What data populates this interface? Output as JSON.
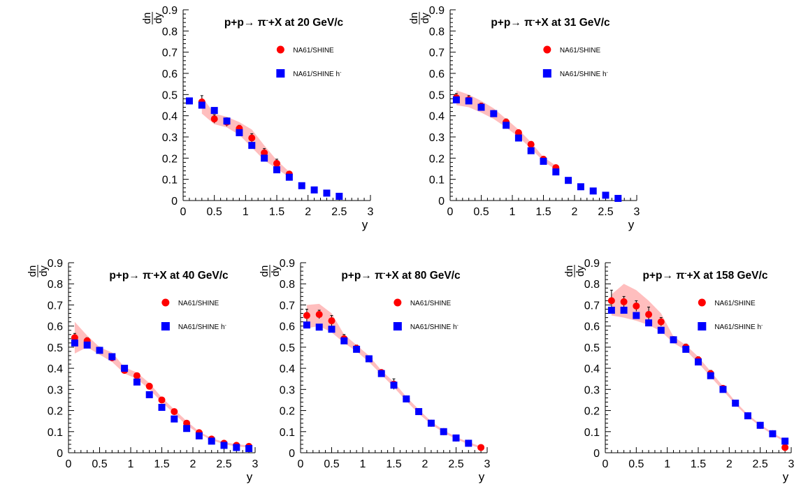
{
  "chart_data": [
    {
      "type": "scatter",
      "title": "p+p→ π⁻+X at 20 GeV/c",
      "ylabel_num": "dn",
      "ylabel_den": "dy",
      "xlabel": "y",
      "xlim": [
        0,
        3
      ],
      "ylim": [
        0,
        0.9
      ],
      "xticks": [
        "0",
        "0.5",
        "1",
        "1.5",
        "2",
        "2.5",
        "3"
      ],
      "yticks": [
        "0",
        "0.1",
        "0.2",
        "0.3",
        "0.4",
        "0.5",
        "0.6",
        "0.7",
        "0.8",
        "0.9"
      ],
      "legend": [
        "NA61/SHINE",
        "NA61/SHINE h⁻"
      ],
      "series": [
        {
          "name": "NA61/SHINE",
          "marker": "circle",
          "color": "#ff0000",
          "points": [
            [
              0.3,
              0.465
            ],
            [
              0.5,
              0.385
            ],
            [
              0.7,
              0.37
            ],
            [
              0.9,
              0.34
            ],
            [
              1.1,
              0.295
            ],
            [
              1.3,
              0.225
            ],
            [
              1.5,
              0.175
            ],
            [
              1.7,
              0.125
            ]
          ],
          "errors": [
            0.03,
            0.02,
            0.02,
            0.015,
            0.02,
            0.02,
            0.02,
            0.01
          ]
        },
        {
          "name": "NA61/SHINE h⁻",
          "marker": "square",
          "color": "#0000ff",
          "points": [
            [
              0.1,
              0.47
            ],
            [
              0.3,
              0.45
            ],
            [
              0.5,
              0.425
            ],
            [
              0.7,
              0.375
            ],
            [
              0.9,
              0.32
            ],
            [
              1.1,
              0.26
            ],
            [
              1.3,
              0.2
            ],
            [
              1.5,
              0.145
            ],
            [
              1.7,
              0.11
            ],
            [
              1.9,
              0.07
            ],
            [
              2.1,
              0.05
            ],
            [
              2.3,
              0.035
            ],
            [
              2.5,
              0.02
            ]
          ]
        }
      ],
      "band": {
        "x": [
          0.3,
          0.5,
          0.7,
          0.9,
          1.1,
          1.3,
          1.5,
          1.7
        ],
        "low": [
          0.41,
          0.36,
          0.345,
          0.31,
          0.25,
          0.19,
          0.15,
          0.11
        ],
        "high": [
          0.49,
          0.41,
          0.395,
          0.37,
          0.335,
          0.26,
          0.19,
          0.135
        ],
        "color": "#ff6f6f"
      }
    },
    {
      "type": "scatter",
      "title": "p+p→ π⁻+X at 31 GeV/c",
      "ylabel_num": "dn",
      "ylabel_den": "dy",
      "xlabel": "y",
      "xlim": [
        0,
        3
      ],
      "ylim": [
        0,
        0.9
      ],
      "xticks": [
        "0",
        "0.5",
        "1",
        "1.5",
        "2",
        "2.5",
        "3"
      ],
      "yticks": [
        "0",
        "0.1",
        "0.2",
        "0.3",
        "0.4",
        "0.5",
        "0.6",
        "0.7",
        "0.8",
        "0.9"
      ],
      "legend": [
        "NA61/SHINE",
        "NA61/SHINE h⁻"
      ],
      "series": [
        {
          "name": "NA61/SHINE",
          "marker": "circle",
          "color": "#ff0000",
          "points": [
            [
              0.1,
              0.485
            ],
            [
              0.3,
              0.475
            ],
            [
              0.5,
              0.445
            ],
            [
              0.7,
              0.41
            ],
            [
              0.9,
              0.37
            ],
            [
              1.1,
              0.32
            ],
            [
              1.3,
              0.265
            ],
            [
              1.5,
              0.195
            ],
            [
              1.7,
              0.155
            ]
          ],
          "errors": [
            0.02,
            0.02,
            0.015,
            0.015,
            0.015,
            0.01,
            0.01,
            0.01,
            0.01
          ]
        },
        {
          "name": "NA61/SHINE h⁻",
          "marker": "square",
          "color": "#0000ff",
          "points": [
            [
              0.1,
              0.475
            ],
            [
              0.3,
              0.47
            ],
            [
              0.5,
              0.44
            ],
            [
              0.7,
              0.41
            ],
            [
              0.9,
              0.355
            ],
            [
              1.1,
              0.295
            ],
            [
              1.3,
              0.235
            ],
            [
              1.5,
              0.185
            ],
            [
              1.7,
              0.135
            ],
            [
              1.9,
              0.095
            ],
            [
              2.1,
              0.065
            ],
            [
              2.3,
              0.045
            ],
            [
              2.5,
              0.025
            ],
            [
              2.7,
              0.01
            ]
          ]
        }
      ],
      "band": {
        "x": [
          0.1,
          0.3,
          0.5,
          0.7,
          0.9,
          1.1,
          1.3,
          1.5,
          1.7
        ],
        "low": [
          0.45,
          0.44,
          0.415,
          0.385,
          0.345,
          0.3,
          0.245,
          0.185,
          0.145
        ],
        "high": [
          0.52,
          0.5,
          0.47,
          0.435,
          0.385,
          0.335,
          0.275,
          0.205,
          0.165
        ],
        "color": "#ff6f6f"
      }
    },
    {
      "type": "scatter",
      "title": "p+p→ π⁻+X at 40 GeV/c",
      "ylabel_num": "dn",
      "ylabel_den": "dy",
      "xlabel": "y",
      "xlim": [
        0,
        3
      ],
      "ylim": [
        0,
        0.9
      ],
      "xticks": [
        "0",
        "0.5",
        "1",
        "1.5",
        "2",
        "2.5",
        "3"
      ],
      "yticks": [
        "0",
        "0.1",
        "0.2",
        "0.3",
        "0.4",
        "0.5",
        "0.6",
        "0.7",
        "0.8",
        "0.9"
      ],
      "legend": [
        "NA61/SHINE",
        "NA61/SHINE h⁻"
      ],
      "series": [
        {
          "name": "NA61/SHINE",
          "marker": "circle",
          "color": "#ff0000",
          "points": [
            [
              0.1,
              0.545
            ],
            [
              0.3,
              0.53
            ],
            [
              0.5,
              0.485
            ],
            [
              0.7,
              0.45
            ],
            [
              0.9,
              0.39
            ],
            [
              1.1,
              0.365
            ],
            [
              1.3,
              0.315
            ],
            [
              1.5,
              0.25
            ],
            [
              1.7,
              0.195
            ],
            [
              1.9,
              0.14
            ],
            [
              2.1,
              0.095
            ],
            [
              2.3,
              0.065
            ],
            [
              2.5,
              0.045
            ],
            [
              2.7,
              0.035
            ],
            [
              2.9,
              0.03
            ]
          ],
          "errors": [
            0.02,
            0.015,
            0.015,
            0.015,
            0.01,
            0.01,
            0.01,
            0.01,
            0.01,
            0.01,
            0.005,
            0.005,
            0.005,
            0.005,
            0.005
          ]
        },
        {
          "name": "NA61/SHINE h⁻",
          "marker": "square",
          "color": "#0000ff",
          "points": [
            [
              0.1,
              0.52
            ],
            [
              0.3,
              0.51
            ],
            [
              0.5,
              0.485
            ],
            [
              0.7,
              0.455
            ],
            [
              0.9,
              0.4
            ],
            [
              1.1,
              0.335
            ],
            [
              1.3,
              0.275
            ],
            [
              1.5,
              0.215
            ],
            [
              1.7,
              0.16
            ],
            [
              1.9,
              0.115
            ],
            [
              2.1,
              0.08
            ],
            [
              2.3,
              0.055
            ],
            [
              2.5,
              0.035
            ],
            [
              2.7,
              0.025
            ],
            [
              2.9,
              0.02
            ]
          ]
        }
      ],
      "band": {
        "x": [
          0.1,
          0.3,
          0.5,
          0.7,
          0.9,
          1.1,
          1.3,
          1.5,
          1.7,
          1.9,
          2.1,
          2.3,
          2.5,
          2.7,
          2.9
        ],
        "low": [
          0.47,
          0.5,
          0.465,
          0.43,
          0.375,
          0.35,
          0.3,
          0.24,
          0.185,
          0.13,
          0.09,
          0.06,
          0.04,
          0.03,
          0.025
        ],
        "high": [
          0.62,
          0.555,
          0.5,
          0.475,
          0.405,
          0.38,
          0.33,
          0.262,
          0.205,
          0.15,
          0.1,
          0.07,
          0.05,
          0.04,
          0.035
        ],
        "color": "#ff6f6f"
      }
    },
    {
      "type": "scatter",
      "title": "p+p→ π⁻+X at 80 GeV/c",
      "ylabel_num": "dn",
      "ylabel_den": "dy",
      "xlabel": "y",
      "xlim": [
        0,
        3
      ],
      "ylim": [
        0,
        0.9
      ],
      "xticks": [
        "0",
        "0.5",
        "1",
        "1.5",
        "2",
        "2.5",
        "3"
      ],
      "yticks": [
        "0",
        "0.1",
        "0.2",
        "0.3",
        "0.4",
        "0.5",
        "0.6",
        "0.7",
        "0.8",
        "0.9"
      ],
      "legend": [
        "NA61/SHINE",
        "NA61/SHINE h⁻"
      ],
      "series": [
        {
          "name": "NA61/SHINE",
          "marker": "circle",
          "color": "#ff0000",
          "points": [
            [
              0.1,
              0.65
            ],
            [
              0.3,
              0.655
            ],
            [
              0.5,
              0.625
            ],
            [
              0.7,
              0.54
            ],
            [
              0.9,
              0.495
            ],
            [
              1.1,
              0.445
            ],
            [
              1.3,
              0.38
            ],
            [
              1.5,
              0.325
            ],
            [
              1.7,
              0.255
            ],
            [
              1.9,
              0.195
            ],
            [
              2.1,
              0.14
            ],
            [
              2.3,
              0.1
            ],
            [
              2.5,
              0.07
            ],
            [
              2.7,
              0.045
            ],
            [
              2.9,
              0.025
            ]
          ],
          "errors": [
            0.03,
            0.02,
            0.025,
            0.02,
            0.015,
            0.015,
            0.01,
            0.025,
            0.01,
            0.01,
            0.005,
            0.005,
            0.005,
            0.005,
            0.005
          ]
        },
        {
          "name": "NA61/SHINE h⁻",
          "marker": "square",
          "color": "#0000ff",
          "points": [
            [
              0.1,
              0.605
            ],
            [
              0.3,
              0.595
            ],
            [
              0.5,
              0.585
            ],
            [
              0.7,
              0.53
            ],
            [
              0.9,
              0.49
            ],
            [
              1.1,
              0.445
            ],
            [
              1.3,
              0.375
            ],
            [
              1.5,
              0.32
            ],
            [
              1.7,
              0.255
            ],
            [
              1.9,
              0.195
            ],
            [
              2.1,
              0.14
            ],
            [
              2.3,
              0.1
            ],
            [
              2.5,
              0.07
            ],
            [
              2.7,
              0.045
            ]
          ]
        }
      ],
      "band": {
        "x": [
          0.1,
          0.3,
          0.5,
          0.7,
          0.9,
          1.1,
          1.3,
          1.5,
          1.7,
          1.9,
          2.1,
          2.3,
          2.5,
          2.7,
          2.9
        ],
        "low": [
          0.59,
          0.6,
          0.57,
          0.52,
          0.48,
          0.43,
          0.37,
          0.31,
          0.245,
          0.185,
          0.135,
          0.095,
          0.065,
          0.04,
          0.02
        ],
        "high": [
          0.7,
          0.705,
          0.66,
          0.56,
          0.51,
          0.46,
          0.39,
          0.335,
          0.265,
          0.205,
          0.148,
          0.107,
          0.075,
          0.05,
          0.03
        ],
        "color": "#ff6f6f"
      }
    },
    {
      "type": "scatter",
      "title": "p+p→ π⁻+X at 158 GeV/c",
      "ylabel_num": "dn",
      "ylabel_den": "dy",
      "xlabel": "y",
      "xlim": [
        0,
        3
      ],
      "ylim": [
        0,
        0.9
      ],
      "xticks": [
        "0",
        "0.5",
        "1",
        "1.5",
        "2",
        "2.5",
        "3"
      ],
      "yticks": [
        "0",
        "0.1",
        "0.2",
        "0.3",
        "0.4",
        "0.5",
        "0.6",
        "0.7",
        "0.8",
        "0.9"
      ],
      "legend": [
        "NA61/SHINE",
        "NA61/SHINE h⁻"
      ],
      "series": [
        {
          "name": "NA61/SHINE",
          "marker": "circle",
          "color": "#ff0000",
          "points": [
            [
              0.1,
              0.72
            ],
            [
              0.3,
              0.715
            ],
            [
              0.5,
              0.695
            ],
            [
              0.7,
              0.655
            ],
            [
              0.9,
              0.62
            ],
            [
              1.1,
              0.535
            ],
            [
              1.3,
              0.5
            ],
            [
              1.5,
              0.44
            ],
            [
              1.7,
              0.375
            ],
            [
              1.9,
              0.305
            ],
            [
              2.1,
              0.235
            ],
            [
              2.3,
              0.175
            ],
            [
              2.5,
              0.13
            ],
            [
              2.7,
              0.09
            ],
            [
              2.9,
              0.025
            ]
          ],
          "errors": [
            0.05,
            0.025,
            0.025,
            0.035,
            0.02,
            0.015,
            0.015,
            0.015,
            0.015,
            0.01,
            0.01,
            0.005,
            0.005,
            0.005,
            0.005
          ]
        },
        {
          "name": "NA61/SHINE h⁻",
          "marker": "square",
          "color": "#0000ff",
          "points": [
            [
              0.1,
              0.675
            ],
            [
              0.3,
              0.675
            ],
            [
              0.5,
              0.65
            ],
            [
              0.7,
              0.615
            ],
            [
              0.9,
              0.58
            ],
            [
              1.1,
              0.535
            ],
            [
              1.3,
              0.49
            ],
            [
              1.5,
              0.43
            ],
            [
              1.7,
              0.365
            ],
            [
              1.9,
              0.3
            ],
            [
              2.1,
              0.235
            ],
            [
              2.3,
              0.175
            ],
            [
              2.5,
              0.13
            ],
            [
              2.7,
              0.09
            ],
            [
              2.9,
              0.055
            ]
          ]
        }
      ],
      "band": {
        "x": [
          0.1,
          0.3,
          0.5,
          0.7,
          0.9,
          1.1,
          1.3,
          1.5,
          1.7,
          1.9,
          2.1,
          2.3,
          2.5,
          2.7,
          2.9
        ],
        "low": [
          0.65,
          0.64,
          0.625,
          0.605,
          0.575,
          0.52,
          0.485,
          0.425,
          0.36,
          0.295,
          0.228,
          0.17,
          0.125,
          0.085,
          0.05
        ],
        "high": [
          0.75,
          0.8,
          0.77,
          0.72,
          0.66,
          0.55,
          0.51,
          0.455,
          0.385,
          0.315,
          0.242,
          0.182,
          0.135,
          0.095,
          0.06
        ],
        "color": "#ff6f6f"
      }
    }
  ]
}
